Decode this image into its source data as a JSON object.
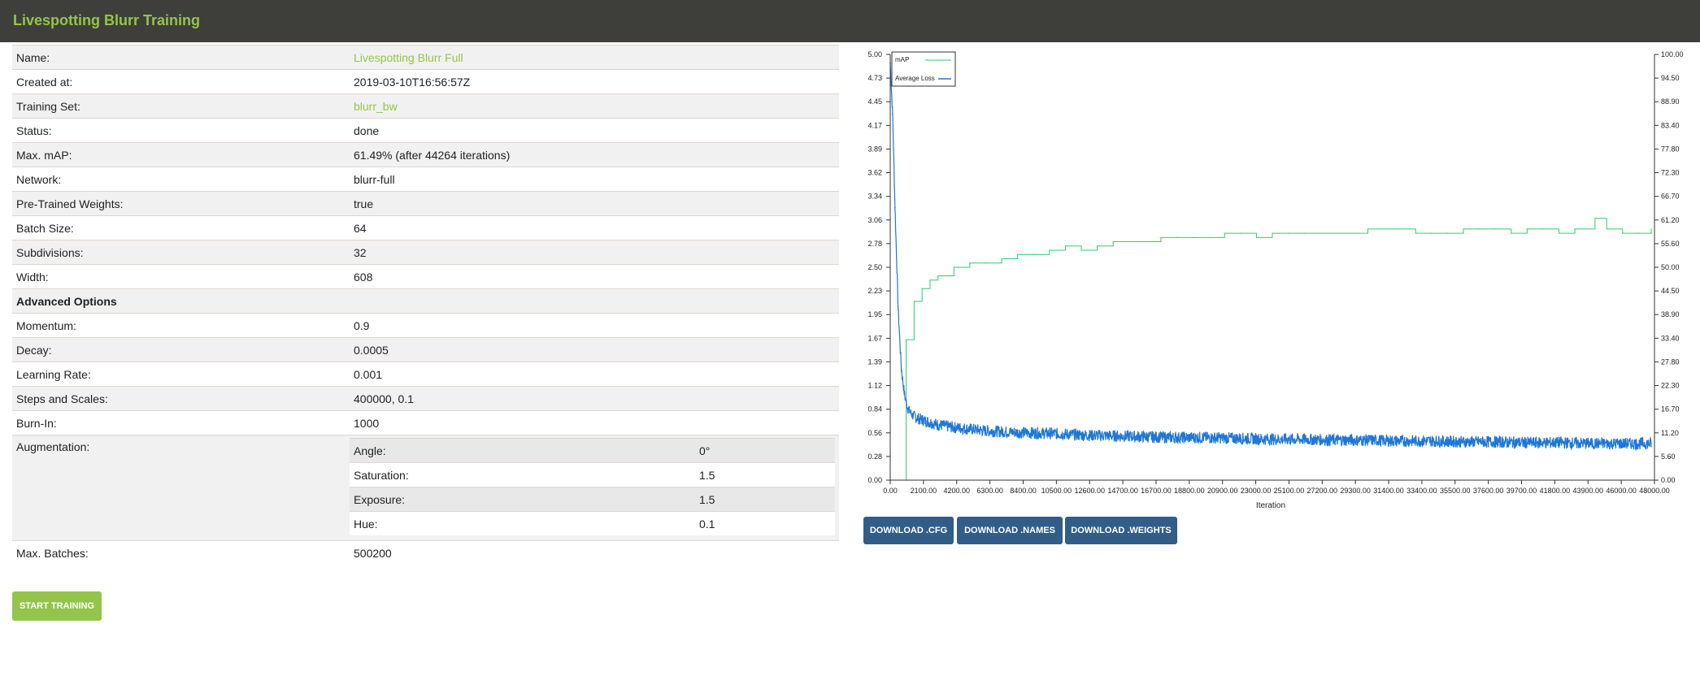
{
  "header": {
    "title": "Livespotting Blurr Training"
  },
  "details": [
    {
      "key": "Name:",
      "value": "Livespotting Blurr Full",
      "link": true
    },
    {
      "key": "Created at:",
      "value": "2019-03-10T16:56:57Z"
    },
    {
      "key": "Training Set:",
      "value": "blurr_bw",
      "link": true
    },
    {
      "key": "Status:",
      "value": "done"
    },
    {
      "key": "Max. mAP:",
      "value": "61.49% (after 44264 iterations)"
    },
    {
      "key": "Network:",
      "value": "blurr-full"
    },
    {
      "key": "Pre-Trained Weights:",
      "value": "true"
    },
    {
      "key": "Batch Size:",
      "value": "64"
    },
    {
      "key": "Subdivisions:",
      "value": "32"
    },
    {
      "key": "Width:",
      "value": "608"
    }
  ],
  "advanced": {
    "heading": "Advanced Options",
    "rows": [
      {
        "key": "Momentum:",
        "value": "0.9"
      },
      {
        "key": "Decay:",
        "value": "0.0005"
      },
      {
        "key": "Learning Rate:",
        "value": "0.001"
      },
      {
        "key": "Steps and Scales:",
        "value": "400000, 0.1"
      },
      {
        "key": "Burn-In:",
        "value": "1000"
      }
    ],
    "augmentation": {
      "label": "Augmentation:",
      "rows": [
        {
          "key": "Angle:",
          "value": "0°"
        },
        {
          "key": "Saturation:",
          "value": "1.5"
        },
        {
          "key": "Exposure:",
          "value": "1.5"
        },
        {
          "key": "Hue:",
          "value": "0.1"
        }
      ]
    },
    "max_batches": {
      "key": "Max. Batches:",
      "value": "500200"
    }
  },
  "buttons": {
    "start_training": "START TRAINING",
    "download_cfg": "DOWNLOAD .CFG",
    "download_names": "DOWNLOAD .NAMES",
    "download_weights": "DOWNLOAD .WEIGHTS"
  },
  "colors": {
    "accent": "#93c54b",
    "primary": "#325d88",
    "header": "#3e3f3a",
    "map": "#2ecc71",
    "loss": "#1f77d4"
  },
  "chart_data": {
    "type": "line",
    "xlabel": "Iteration",
    "xlim": [
      0,
      48000
    ],
    "x_ticks": [
      "0.00",
      "2100.00",
      "4200.00",
      "6300.00",
      "8400.00",
      "10500.00",
      "12600.00",
      "14700.00",
      "16700.00",
      "18800.00",
      "20900.00",
      "23000.00",
      "25100.00",
      "27200.00",
      "29300.00",
      "31400.00",
      "33400.00",
      "35500.00",
      "37600.00",
      "39700.00",
      "41800.00",
      "43900.00",
      "46000.00",
      "48000.00"
    ],
    "y_left": {
      "lim": [
        0,
        5.0
      ],
      "ticks": [
        "0.00",
        "0.28",
        "0.56",
        "0.84",
        "1.12",
        "1.39",
        "1.67",
        "1.95",
        "2.23",
        "2.50",
        "2.78",
        "3.06",
        "3.34",
        "3.62",
        "3.89",
        "4.17",
        "4.45",
        "4.73",
        "5.00"
      ]
    },
    "y_right": {
      "lim": [
        0,
        100
      ],
      "ticks": [
        "0.00",
        "5.60",
        "11.20",
        "16.70",
        "22.30",
        "27.80",
        "33.40",
        "38.90",
        "44.50",
        "50.00",
        "55.60",
        "61.20",
        "66.70",
        "72.30",
        "77.80",
        "83.40",
        "88.90",
        "94.50",
        "100.00"
      ]
    },
    "legend_position": "top-left",
    "series": [
      {
        "name": "mAP",
        "axis": "right",
        "x": [
          450,
          900,
          1000,
          1500,
          2000,
          2500,
          3000,
          4000,
          5000,
          6000,
          7000,
          8000,
          9000,
          10000,
          11000,
          12000,
          13000,
          14000,
          15000,
          16000,
          17000,
          18000,
          19000,
          20000,
          21000,
          22000,
          23000,
          24000,
          25000,
          26000,
          27000,
          28000,
          29000,
          30000,
          31000,
          32000,
          33000,
          34000,
          35000,
          36000,
          37000,
          38000,
          39000,
          40000,
          41000,
          42000,
          43000,
          44264,
          45000,
          46000,
          47000,
          47800
        ],
        "values": [
          0,
          0,
          33,
          42,
          45,
          47,
          48,
          50,
          51,
          51,
          52,
          53,
          53,
          54,
          55,
          54,
          55,
          56,
          56,
          56,
          57,
          57,
          57,
          57,
          58,
          58,
          57,
          58,
          58,
          58,
          58,
          58,
          58,
          59,
          59,
          59,
          58,
          58,
          58,
          59,
          59,
          59,
          58,
          59,
          59,
          58,
          59,
          61.49,
          59,
          58,
          58,
          59
        ]
      },
      {
        "name": "Average Loss",
        "axis": "left",
        "x": [
          0,
          150,
          300,
          500,
          700,
          900,
          1100,
          1400,
          1800,
          2300,
          3000,
          4000,
          5000,
          6000,
          7000,
          8000,
          10000,
          12000,
          14000,
          16000,
          18000,
          20000,
          22000,
          24000,
          26000,
          28000,
          30000,
          32000,
          34000,
          36000,
          38000,
          40000,
          42000,
          44000,
          46000,
          47800
        ],
        "values": [
          4.9,
          4.3,
          3.2,
          2.0,
          1.3,
          1.0,
          0.84,
          0.76,
          0.72,
          0.69,
          0.65,
          0.62,
          0.6,
          0.58,
          0.57,
          0.56,
          0.55,
          0.53,
          0.52,
          0.51,
          0.5,
          0.5,
          0.49,
          0.48,
          0.48,
          0.47,
          0.47,
          0.46,
          0.46,
          0.45,
          0.45,
          0.44,
          0.44,
          0.43,
          0.43,
          0.43
        ]
      }
    ]
  }
}
